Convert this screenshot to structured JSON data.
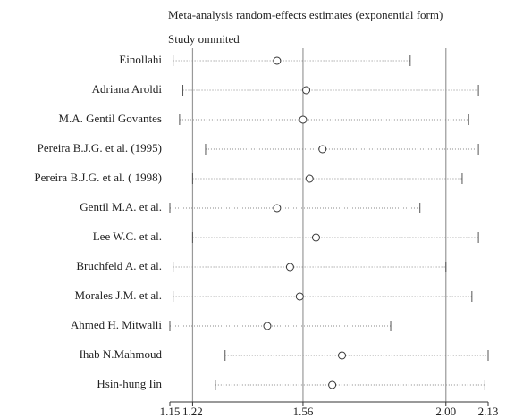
{
  "chart_data": {
    "type": "influence",
    "title": "Meta-analysis random-effects estimates (exponential form)",
    "subtitle": "Study ommited",
    "categories": [
      "Einollahi",
      "Adriana Aroldi",
      "M.A. Gentil Govantes",
      "Pereira B.J.G. et al. (1995)",
      "Pereira B.J.G. et al. ( 1998)",
      "Gentil M.A. et al.",
      "Lee W.C. et al.",
      "Bruchfeld A. et al.",
      "Morales J.M. et al.",
      "Ahmed H. Mitwalli",
      "Ihab N.Mahmoud",
      "Hsin-hung Iin"
    ],
    "values": [
      1.48,
      1.57,
      1.56,
      1.62,
      1.58,
      1.48,
      1.6,
      1.52,
      1.55,
      1.45,
      1.68,
      1.65
    ],
    "lower": [
      1.16,
      1.19,
      1.18,
      1.26,
      1.22,
      1.15,
      1.22,
      1.16,
      1.16,
      1.15,
      1.32,
      1.29
    ],
    "upper": [
      1.89,
      2.1,
      2.07,
      2.1,
      2.05,
      1.92,
      2.1,
      2.0,
      2.08,
      1.83,
      2.13,
      2.12
    ],
    "xlim": [
      1.15,
      2.13
    ],
    "xticks": [
      1.15,
      1.22,
      1.56,
      {
        "value": 2,
        "label": "2.00"
      },
      2.13
    ],
    "reference_lines": [
      1.22,
      1.56,
      2
    ]
  }
}
